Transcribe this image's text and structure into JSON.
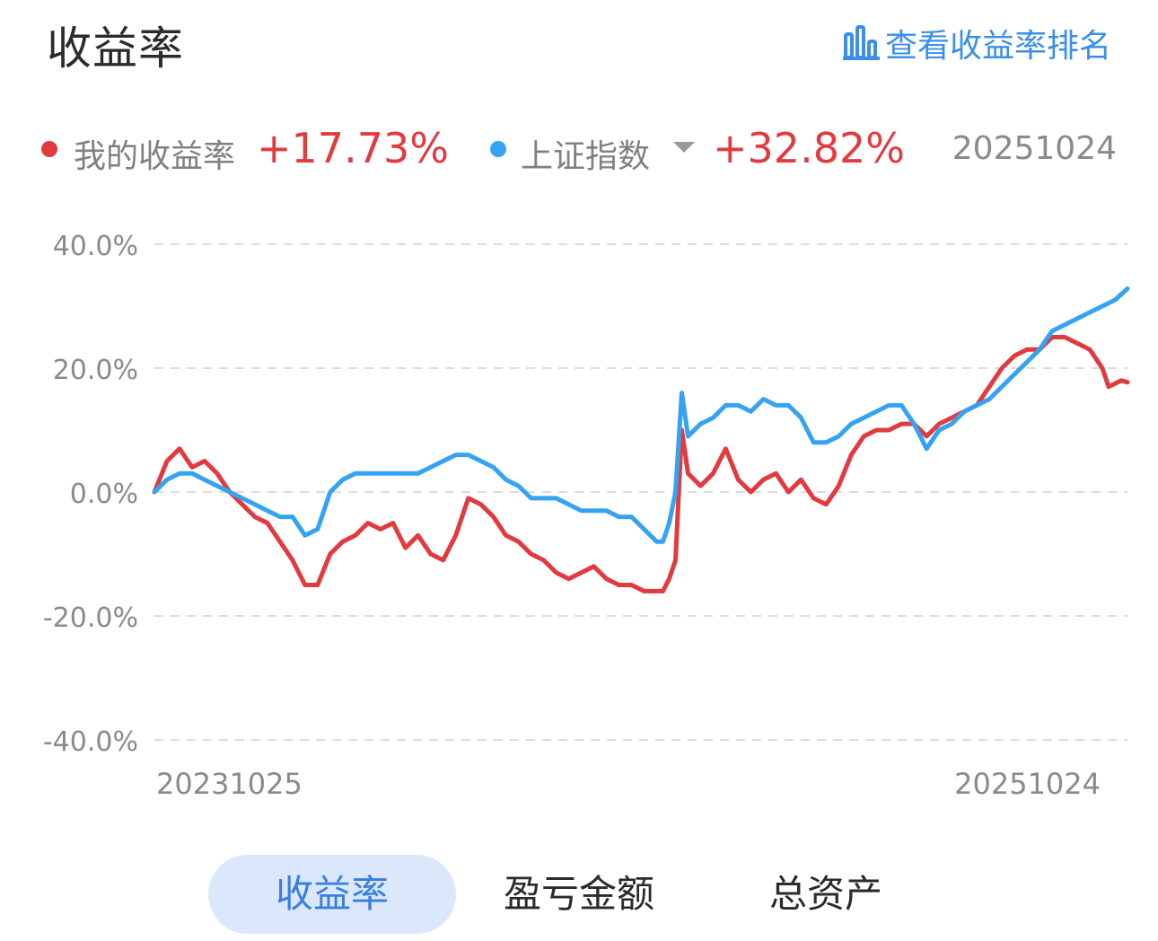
{
  "header": {
    "title": "收益率",
    "rank_link": "查看收益率排名"
  },
  "legend": {
    "mine_label": "我的收益率",
    "mine_value": "+17.73%",
    "index_label": "上证指数",
    "index_value": "+32.82%",
    "date": "20251024"
  },
  "colors": {
    "mine": "#e23a3f",
    "index": "#35a3f3",
    "accent": "#3a8fe8",
    "tab_active_bg": "#dbe8fc"
  },
  "chart_data": {
    "type": "line",
    "y_ticks": [
      "40.0%",
      "20.0%",
      "0.0%",
      "-20.0%",
      "-40.0%"
    ],
    "ylim": [
      -40,
      40
    ],
    "x_start_label": "20231025",
    "x_end_label": "20251024",
    "grid": true,
    "series": [
      {
        "name": "我的收益率",
        "points": [
          [
            0,
            0
          ],
          [
            2,
            5
          ],
          [
            4,
            7
          ],
          [
            6,
            4
          ],
          [
            8,
            5
          ],
          [
            10,
            3
          ],
          [
            12,
            0
          ],
          [
            14,
            -2
          ],
          [
            16,
            -4
          ],
          [
            18,
            -5
          ],
          [
            20,
            -8
          ],
          [
            22,
            -11
          ],
          [
            24,
            -15
          ],
          [
            26,
            -15
          ],
          [
            28,
            -10
          ],
          [
            30,
            -8
          ],
          [
            32,
            -7
          ],
          [
            34,
            -5
          ],
          [
            36,
            -6
          ],
          [
            38,
            -5
          ],
          [
            40,
            -9
          ],
          [
            42,
            -7
          ],
          [
            44,
            -10
          ],
          [
            46,
            -11
          ],
          [
            48,
            -7
          ],
          [
            50,
            -1
          ],
          [
            52,
            -2
          ],
          [
            54,
            -4
          ],
          [
            56,
            -7
          ],
          [
            58,
            -8
          ],
          [
            60,
            -10
          ],
          [
            62,
            -11
          ],
          [
            64,
            -13
          ],
          [
            66,
            -14
          ],
          [
            68,
            -13
          ],
          [
            70,
            -12
          ],
          [
            72,
            -14
          ],
          [
            74,
            -15
          ],
          [
            76,
            -15
          ],
          [
            78,
            -16
          ],
          [
            80,
            -16
          ],
          [
            81,
            -16
          ],
          [
            82,
            -14
          ],
          [
            83,
            -11
          ],
          [
            84,
            10
          ],
          [
            85,
            3
          ],
          [
            87,
            1
          ],
          [
            89,
            3
          ],
          [
            91,
            7
          ],
          [
            93,
            2
          ],
          [
            95,
            0
          ],
          [
            97,
            2
          ],
          [
            99,
            3
          ],
          [
            101,
            0
          ],
          [
            103,
            2
          ],
          [
            105,
            -1
          ],
          [
            107,
            -2
          ],
          [
            109,
            1
          ],
          [
            111,
            6
          ],
          [
            113,
            9
          ],
          [
            115,
            10
          ],
          [
            117,
            10
          ],
          [
            119,
            11
          ],
          [
            121,
            11
          ],
          [
            123,
            9
          ],
          [
            125,
            11
          ],
          [
            127,
            12
          ],
          [
            129,
            13
          ],
          [
            131,
            14
          ],
          [
            133,
            17
          ],
          [
            135,
            20
          ],
          [
            137,
            22
          ],
          [
            139,
            23
          ],
          [
            141,
            23
          ],
          [
            143,
            25
          ],
          [
            145,
            25
          ],
          [
            147,
            24
          ],
          [
            149,
            23
          ],
          [
            151,
            20
          ],
          [
            152,
            17
          ],
          [
            154,
            18
          ],
          [
            155,
            17.73
          ]
        ]
      },
      {
        "name": "上证指数",
        "points": [
          [
            0,
            0
          ],
          [
            2,
            2
          ],
          [
            4,
            3
          ],
          [
            6,
            3
          ],
          [
            8,
            2
          ],
          [
            10,
            1
          ],
          [
            12,
            0
          ],
          [
            14,
            -1
          ],
          [
            16,
            -2
          ],
          [
            18,
            -3
          ],
          [
            20,
            -4
          ],
          [
            22,
            -4
          ],
          [
            24,
            -7
          ],
          [
            26,
            -6
          ],
          [
            28,
            0
          ],
          [
            30,
            2
          ],
          [
            32,
            3
          ],
          [
            34,
            3
          ],
          [
            36,
            3
          ],
          [
            38,
            3
          ],
          [
            40,
            3
          ],
          [
            42,
            3
          ],
          [
            44,
            4
          ],
          [
            46,
            5
          ],
          [
            48,
            6
          ],
          [
            50,
            6
          ],
          [
            52,
            5
          ],
          [
            54,
            4
          ],
          [
            56,
            2
          ],
          [
            58,
            1
          ],
          [
            60,
            -1
          ],
          [
            62,
            -1
          ],
          [
            64,
            -1
          ],
          [
            66,
            -2
          ],
          [
            68,
            -3
          ],
          [
            70,
            -3
          ],
          [
            72,
            -3
          ],
          [
            74,
            -4
          ],
          [
            76,
            -4
          ],
          [
            78,
            -6
          ],
          [
            80,
            -8
          ],
          [
            81,
            -8
          ],
          [
            82,
            -5
          ],
          [
            83,
            0
          ],
          [
            84,
            16
          ],
          [
            85,
            9
          ],
          [
            87,
            11
          ],
          [
            89,
            12
          ],
          [
            91,
            14
          ],
          [
            93,
            14
          ],
          [
            95,
            13
          ],
          [
            97,
            15
          ],
          [
            99,
            14
          ],
          [
            101,
            14
          ],
          [
            103,
            12
          ],
          [
            105,
            8
          ],
          [
            107,
            8
          ],
          [
            109,
            9
          ],
          [
            111,
            11
          ],
          [
            113,
            12
          ],
          [
            115,
            13
          ],
          [
            117,
            14
          ],
          [
            119,
            14
          ],
          [
            121,
            11
          ],
          [
            123,
            7
          ],
          [
            125,
            10
          ],
          [
            127,
            11
          ],
          [
            129,
            13
          ],
          [
            131,
            14
          ],
          [
            133,
            15
          ],
          [
            135,
            17
          ],
          [
            137,
            19
          ],
          [
            139,
            21
          ],
          [
            141,
            23
          ],
          [
            143,
            26
          ],
          [
            145,
            27
          ],
          [
            147,
            28
          ],
          [
            149,
            29
          ],
          [
            151,
            30
          ],
          [
            153,
            31
          ],
          [
            155,
            32.82
          ]
        ]
      }
    ]
  },
  "tabs": [
    {
      "label": "收益率",
      "active": true
    },
    {
      "label": "盈亏金额",
      "active": false
    },
    {
      "label": "总资产",
      "active": false
    }
  ]
}
